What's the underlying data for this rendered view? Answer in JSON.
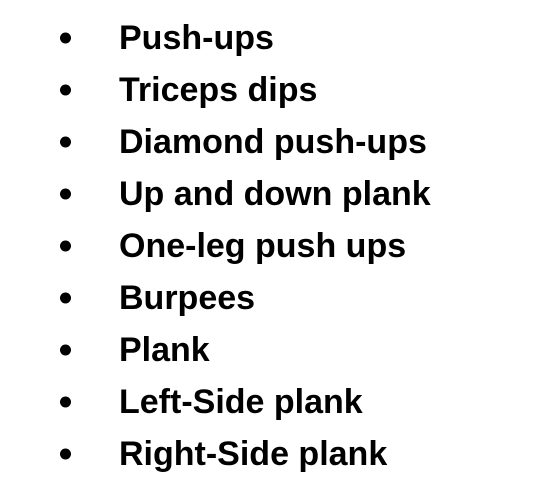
{
  "bullet_list": {
    "items": [
      {
        "label": "Push-ups"
      },
      {
        "label": "Triceps dips"
      },
      {
        "label": "Diamond push-ups"
      },
      {
        "label": "Up and down plank"
      },
      {
        "label": "One-leg push ups"
      },
      {
        "label": "Burpees"
      },
      {
        "label": "Plank"
      },
      {
        "label": "Left-Side plank"
      },
      {
        "label": "Right-Side plank"
      }
    ]
  }
}
